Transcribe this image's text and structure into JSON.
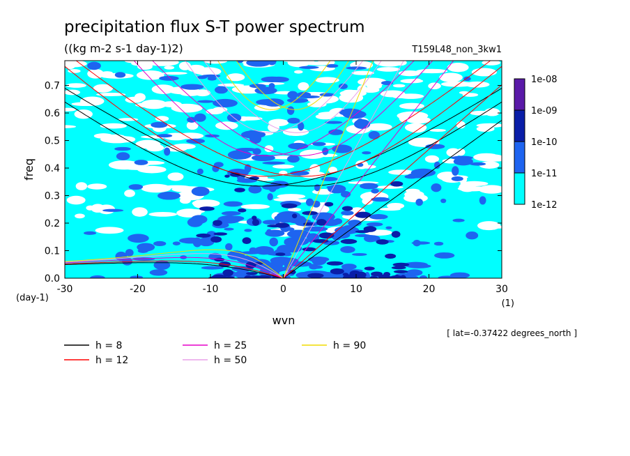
{
  "chart_data": {
    "type": "heatmap",
    "title": "precipitation flux S-T power spectrum",
    "units": "((kg m-2 s-1 day-1)2)",
    "run_label": "T159L48_non_3kw1",
    "xlabel": "wvn",
    "ylabel": "freq",
    "x_unit": "(1)",
    "y_unit": "(day-1)",
    "xlim": [
      -30,
      30
    ],
    "ylim": [
      0,
      0.79
    ],
    "x_ticks": [
      "-30",
      "-20",
      "-10",
      "0",
      "10",
      "20",
      "30"
    ],
    "y_ticks": [
      "0.0",
      "0.1",
      "0.2",
      "0.3",
      "0.4",
      "0.5",
      "0.6",
      "0.7"
    ],
    "annotation": "[ lat=-0.37422 degrees_north ]",
    "colorbar": {
      "levels": [
        "1e-08",
        "1e-09",
        "1e-10",
        "1e-11",
        "1e-12"
      ],
      "colors": [
        "#5a1aa8",
        "#0a1ea8",
        "#1e64f0",
        "#00ffff"
      ]
    },
    "dispersion_curves": [
      {
        "label": "h =  8",
        "h": 8,
        "color": "#000000"
      },
      {
        "label": "h = 12",
        "h": 12,
        "color": "#ff0000"
      },
      {
        "label": "h = 25",
        "h": 25,
        "color": "#e600c8"
      },
      {
        "label": "h = 50",
        "h": 50,
        "color": "#e8a0e8"
      },
      {
        "label": "h = 90",
        "h": 90,
        "color": "#f0dc00"
      }
    ]
  }
}
